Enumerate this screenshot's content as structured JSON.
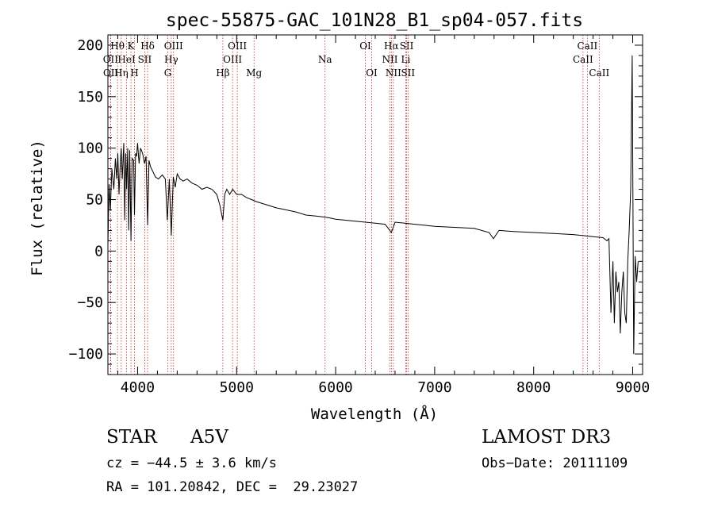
{
  "chart_data": {
    "type": "line",
    "title": "spec-55875-GAC_101N28_B1_sp04-057.fits",
    "xlabel": "Wavelength (Å)",
    "ylabel": "Flux (relative)",
    "xlim": [
      3700,
      9100
    ],
    "ylim": [
      -120,
      210
    ],
    "xticks": [
      4000,
      5000,
      6000,
      7000,
      8000,
      9000
    ],
    "xtick_labels": [
      "4000",
      "5000",
      "6000",
      "7000",
      "8000",
      "9000"
    ],
    "yticks": [
      -100,
      -50,
      0,
      50,
      100,
      150,
      200
    ],
    "ytick_labels": [
      "−100",
      "−50",
      "0",
      "50",
      "100",
      "150",
      "200"
    ],
    "series": [
      {
        "name": "spectrum",
        "x": [
          3700,
          3712,
          3725,
          3740,
          3760,
          3775,
          3790,
          3800,
          3812,
          3825,
          3835,
          3845,
          3860,
          3870,
          3880,
          3889,
          3900,
          3910,
          3920,
          3933,
          3945,
          3960,
          3968,
          3980,
          3990,
          4000,
          4015,
          4030,
          4050,
          4070,
          4085,
          4101,
          4115,
          4130,
          4150,
          4180,
          4210,
          4250,
          4280,
          4300,
          4320,
          4340,
          4360,
          4380,
          4400,
          4430,
          4460,
          4500,
          4550,
          4600,
          4650,
          4700,
          4750,
          4800,
          4830,
          4861,
          4880,
          4900,
          4930,
          4960,
          5000,
          5050,
          5100,
          5150,
          5200,
          5300,
          5400,
          5500,
          5600,
          5700,
          5800,
          5893,
          5950,
          6000,
          6100,
          6200,
          6300,
          6400,
          6500,
          6563,
          6600,
          6700,
          6800,
          6900,
          7000,
          7200,
          7400,
          7550,
          7594,
          7650,
          7800,
          8000,
          8200,
          8400,
          8500,
          8600,
          8700,
          8740,
          8760,
          8780,
          8800,
          8815,
          8830,
          8845,
          8860,
          8875,
          8890,
          8905,
          8920,
          8935,
          8950,
          8965,
          8980,
          8995,
          9010,
          9025,
          9040,
          9055
        ],
        "y": [
          5,
          65,
          40,
          80,
          60,
          90,
          70,
          95,
          55,
          85,
          100,
          70,
          105,
          30,
          95,
          60,
          100,
          20,
          98,
          10,
          90,
          88,
          35,
          95,
          92,
          105,
          85,
          100,
          95,
          85,
          92,
          25,
          88,
          82,
          78,
          72,
          70,
          74,
          70,
          30,
          70,
          15,
          72,
          62,
          75,
          70,
          68,
          70,
          66,
          64,
          60,
          62,
          60,
          55,
          45,
          30,
          55,
          60,
          55,
          60,
          55,
          55,
          52,
          50,
          48,
          45,
          42,
          40,
          38,
          35,
          34,
          33,
          32,
          31,
          30,
          29,
          28,
          27,
          26,
          18,
          28,
          27,
          26,
          25,
          24,
          23,
          22,
          18,
          12,
          20,
          19,
          18,
          17,
          16,
          15,
          14,
          13,
          10,
          12,
          -60,
          -10,
          -70,
          -20,
          -40,
          -30,
          -80,
          -40,
          -20,
          -60,
          -70,
          -10,
          20,
          60,
          190,
          -100,
          -5,
          -30,
          -10
        ]
      }
    ],
    "lines": [
      {
        "name": "Hθ",
        "wave": 3797,
        "row": 0
      },
      {
        "name": "OII",
        "wave": 3727,
        "row": 1
      },
      {
        "name": "OII",
        "wave": 3729,
        "row": 2
      },
      {
        "name": "Hη",
        "wave": 3835,
        "row": 2
      },
      {
        "name": "HeI",
        "wave": 3889,
        "row": 1
      },
      {
        "name": "K",
        "wave": 3933,
        "row": 0
      },
      {
        "name": "H",
        "wave": 3968,
        "row": 2
      },
      {
        "name": "SII",
        "wave": 4072,
        "row": 1
      },
      {
        "name": "Hδ",
        "wave": 4101,
        "row": 0
      },
      {
        "name": "Hγ",
        "wave": 4340,
        "row": 1
      },
      {
        "name": "G",
        "wave": 4305,
        "row": 2
      },
      {
        "name": "OIII",
        "wave": 4363,
        "row": 0
      },
      {
        "name": "Hβ",
        "wave": 4861,
        "row": 2
      },
      {
        "name": "OIII",
        "wave": 4959,
        "row": 1
      },
      {
        "name": "OIII",
        "wave": 5007,
        "row": 0
      },
      {
        "name": "Mg",
        "wave": 5176,
        "row": 2
      },
      {
        "name": "Na",
        "wave": 5893,
        "row": 1
      },
      {
        "name": "OI",
        "wave": 6300,
        "row": 0
      },
      {
        "name": "OI",
        "wave": 6364,
        "row": 2
      },
      {
        "name": "NII",
        "wave": 6548,
        "row": 1
      },
      {
        "name": "Hα",
        "wave": 6563,
        "row": 0
      },
      {
        "name": "NII",
        "wave": 6583,
        "row": 2
      },
      {
        "name": "SII",
        "wave": 6717,
        "row": 0
      },
      {
        "name": "Li",
        "wave": 6708,
        "row": 1
      },
      {
        "name": "SII",
        "wave": 6731,
        "row": 2
      },
      {
        "name": "CaII",
        "wave": 8542,
        "row": 0
      },
      {
        "name": "CaII",
        "wave": 8498,
        "row": 1
      },
      {
        "name": "CaII",
        "wave": 8662,
        "row": 2
      }
    ]
  },
  "info": {
    "class": "STAR",
    "subclass": "A5V",
    "survey": "LAMOST DR3",
    "cz": "cz = −44.5 ± 3.6 km/s",
    "obs_date": "Obs−Date: 20111109",
    "radec": "RA = 101.20842, DEC =  29.23027"
  },
  "colors": {
    "spectrum": "#000000",
    "line_marker": "#c03030"
  }
}
